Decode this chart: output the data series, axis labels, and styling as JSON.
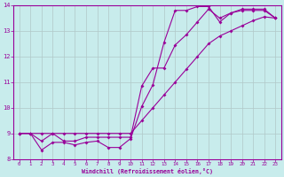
{
  "title": "",
  "xlabel": "Windchill (Refroidissement éolien,°C)",
  "ylabel": "",
  "bg_color": "#c8ecec",
  "line_color": "#990099",
  "grid_color": "#b0c8c8",
  "xlim": [
    -0.5,
    23.5
  ],
  "ylim": [
    8,
    14
  ],
  "yticks": [
    8,
    9,
    10,
    11,
    12,
    13,
    14
  ],
  "xticks": [
    0,
    1,
    2,
    3,
    4,
    5,
    6,
    7,
    8,
    9,
    10,
    11,
    12,
    13,
    14,
    15,
    16,
    17,
    18,
    19,
    20,
    21,
    22,
    23
  ],
  "series1_x": [
    0,
    1,
    2,
    3,
    4,
    5,
    6,
    7,
    8,
    9,
    10,
    11,
    12,
    13,
    14,
    15,
    16,
    17,
    18,
    19,
    20,
    21,
    22,
    23
  ],
  "series1_y": [
    9.0,
    9.0,
    8.35,
    8.65,
    8.65,
    8.55,
    8.65,
    8.7,
    8.45,
    8.45,
    8.8,
    10.05,
    10.9,
    12.55,
    13.8,
    13.8,
    13.95,
    13.95,
    13.35,
    13.7,
    13.8,
    13.8,
    13.8,
    13.5
  ],
  "series2_x": [
    0,
    1,
    2,
    3,
    4,
    5,
    6,
    7,
    8,
    9,
    10,
    11,
    12,
    13,
    14,
    15,
    16,
    17,
    18,
    19,
    20,
    21,
    22,
    23
  ],
  "series2_y": [
    9.0,
    9.0,
    8.7,
    9.0,
    8.7,
    8.7,
    8.85,
    8.85,
    8.85,
    8.85,
    8.85,
    10.85,
    11.55,
    11.55,
    12.45,
    12.85,
    13.35,
    13.85,
    13.5,
    13.7,
    13.85,
    13.85,
    13.85,
    13.5
  ],
  "series3_x": [
    0,
    1,
    2,
    3,
    4,
    5,
    6,
    7,
    8,
    9,
    10,
    11,
    12,
    13,
    14,
    15,
    16,
    17,
    18,
    19,
    20,
    21,
    22,
    23
  ],
  "series3_y": [
    9.0,
    9.0,
    9.0,
    9.0,
    9.0,
    9.0,
    9.0,
    9.0,
    9.0,
    9.0,
    9.0,
    9.5,
    10.0,
    10.5,
    11.0,
    11.5,
    12.0,
    12.5,
    12.8,
    13.0,
    13.2,
    13.4,
    13.55,
    13.5
  ]
}
